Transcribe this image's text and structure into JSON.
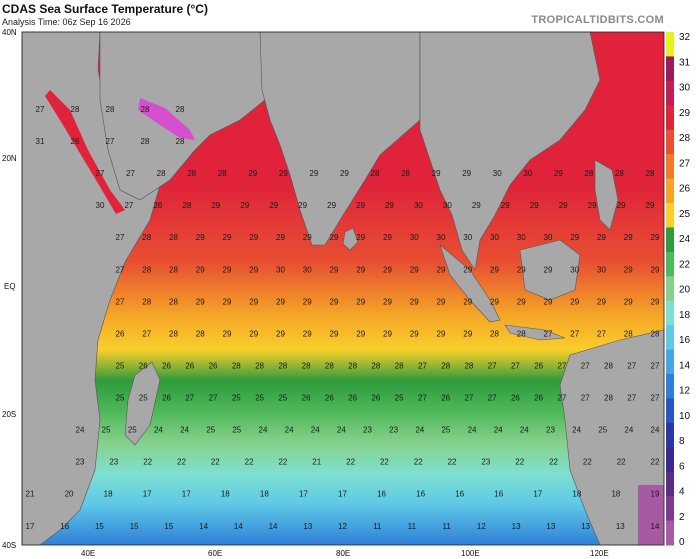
{
  "header": {
    "title": "CDAS Sea Surface Temperature (°C)",
    "subtitle": "Analysis Time: 06z Sep 16 2026",
    "brand": "TROPICALTIDBITS.COM"
  },
  "axes": {
    "lat_ticks": [
      "40N",
      "20N",
      "EQ",
      "20S",
      "40S"
    ],
    "lon_ticks": [
      "40E",
      "60E",
      "80E",
      "100E",
      "120E"
    ]
  },
  "colorbar": {
    "labels": [
      "32",
      "31",
      "30",
      "29",
      "28",
      "27",
      "26",
      "25",
      "24",
      "22",
      "20",
      "18",
      "16",
      "14",
      "12",
      "10",
      "8",
      "6",
      "4",
      "2",
      "0"
    ],
    "colors": [
      "#e6f21e",
      "#9b1b5a",
      "#c21d55",
      "#e0233a",
      "#e85032",
      "#ee7a2a",
      "#f5a427",
      "#f9cf2b",
      "#2e9b3c",
      "#4fb85a",
      "#86d08a",
      "#7fe0d0",
      "#5fc9e6",
      "#46a6e3",
      "#2f7fd8",
      "#2657c4",
      "#2c37a6",
      "#3b2a8e",
      "#5a2c86",
      "#7c3a8e",
      "#a65aa3"
    ]
  },
  "map": {
    "background_color": "#a8a8a8",
    "ocean_base_color": "#e85032"
  },
  "sst_labels": {
    "row_lats": [
      28,
      23,
      18,
      13,
      8,
      3,
      -2,
      -7,
      -12,
      -17,
      -22,
      -27,
      -32,
      -37
    ],
    "rows": [
      {
        "lat": 28,
        "cells": [
          [
            27,
            "red"
          ],
          [
            28,
            "red"
          ],
          [
            28,
            "red"
          ],
          [
            28,
            "red"
          ],
          [
            28,
            "red"
          ]
        ]
      },
      {
        "lat": 23,
        "cells": [
          [
            31,
            "red"
          ],
          [
            26,
            "orange"
          ],
          [
            27,
            "orange"
          ],
          [
            28,
            "red"
          ],
          [
            28,
            "red"
          ]
        ]
      },
      {
        "lat": 18,
        "cells": [
          [
            27,
            "orange"
          ],
          [
            27,
            "orange"
          ],
          [
            28,
            "red"
          ],
          [
            28,
            "red"
          ],
          [
            28,
            "red"
          ],
          [
            29,
            "red"
          ],
          [
            29,
            "red"
          ],
          [
            29,
            "red"
          ],
          [
            29,
            "red"
          ],
          [
            28,
            "red"
          ],
          [
            28,
            "red"
          ],
          [
            29,
            "red"
          ],
          [
            29,
            "red"
          ],
          [
            30,
            "red"
          ],
          [
            30,
            "red"
          ],
          [
            29,
            "red"
          ],
          [
            28,
            "red"
          ],
          [
            28,
            "red"
          ],
          [
            28,
            "red"
          ]
        ]
      },
      {
        "lat": 13,
        "cells": [
          [
            30,
            "red"
          ],
          [
            27,
            "orange"
          ],
          [
            26,
            "orange"
          ],
          [
            28,
            "red"
          ],
          [
            29,
            "red"
          ],
          [
            29,
            "red"
          ],
          [
            29,
            "red"
          ],
          [
            29,
            "red"
          ],
          [
            29,
            "red"
          ],
          [
            29,
            "red"
          ],
          [
            29,
            "red"
          ],
          [
            30,
            "red"
          ],
          [
            30,
            "red"
          ],
          [
            29,
            "red"
          ],
          [
            29,
            "red"
          ],
          [
            29,
            "red"
          ],
          [
            29,
            "red"
          ],
          [
            29,
            "red"
          ],
          [
            29,
            "red"
          ],
          [
            29,
            "red"
          ]
        ]
      },
      {
        "lat": 8,
        "cells": [
          [
            27,
            "orange"
          ],
          [
            28,
            "red"
          ],
          [
            28,
            "red"
          ],
          [
            29,
            "red"
          ],
          [
            29,
            "red"
          ],
          [
            29,
            "red"
          ],
          [
            29,
            "red"
          ],
          [
            29,
            "red"
          ],
          [
            29,
            "red"
          ],
          [
            29,
            "red"
          ],
          [
            29,
            "red"
          ],
          [
            30,
            "red"
          ],
          [
            30,
            "red"
          ],
          [
            30,
            "red"
          ],
          [
            30,
            "red"
          ],
          [
            30,
            "red"
          ],
          [
            30,
            "red"
          ],
          [
            29,
            "red"
          ],
          [
            29,
            "red"
          ],
          [
            29,
            "red"
          ],
          [
            29,
            "red"
          ]
        ]
      },
      {
        "lat": 3,
        "cells": [
          [
            27,
            "orange"
          ],
          [
            28,
            "red"
          ],
          [
            28,
            "red"
          ],
          [
            29,
            "red"
          ],
          [
            29,
            "red"
          ],
          [
            29,
            "red"
          ],
          [
            30,
            "red"
          ],
          [
            30,
            "red"
          ],
          [
            29,
            "red"
          ],
          [
            29,
            "red"
          ],
          [
            29,
            "red"
          ],
          [
            29,
            "red"
          ],
          [
            29,
            "red"
          ],
          [
            29,
            "red"
          ],
          [
            29,
            "red"
          ],
          [
            29,
            "red"
          ],
          [
            29,
            "red"
          ],
          [
            30,
            "red"
          ],
          [
            30,
            "red"
          ],
          [
            29,
            "red"
          ],
          [
            29,
            "red"
          ]
        ]
      },
      {
        "lat": -2,
        "cells": [
          [
            27,
            "orange"
          ],
          [
            28,
            "orange"
          ],
          [
            28,
            "red"
          ],
          [
            29,
            "red"
          ],
          [
            29,
            "red"
          ],
          [
            29,
            "red"
          ],
          [
            29,
            "red"
          ],
          [
            29,
            "red"
          ],
          [
            29,
            "red"
          ],
          [
            29,
            "red"
          ],
          [
            29,
            "red"
          ],
          [
            29,
            "red"
          ],
          [
            29,
            "red"
          ],
          [
            29,
            "red"
          ],
          [
            29,
            "red"
          ],
          [
            29,
            "red"
          ],
          [
            29,
            "red"
          ],
          [
            29,
            "red"
          ],
          [
            29,
            "red"
          ],
          [
            29,
            "red"
          ],
          [
            29,
            "red"
          ]
        ]
      },
      {
        "lat": -7,
        "cells": [
          [
            26,
            "yellow"
          ],
          [
            27,
            "orange"
          ],
          [
            28,
            "orange"
          ],
          [
            28,
            "red"
          ],
          [
            29,
            "red"
          ],
          [
            29,
            "red"
          ],
          [
            29,
            "red"
          ],
          [
            29,
            "red"
          ],
          [
            29,
            "red"
          ],
          [
            29,
            "red"
          ],
          [
            29,
            "red"
          ],
          [
            29,
            "red"
          ],
          [
            29,
            "red"
          ],
          [
            29,
            "red"
          ],
          [
            28,
            "orange"
          ],
          [
            28,
            "orange"
          ],
          [
            27,
            "orange"
          ],
          [
            27,
            "orange"
          ],
          [
            27,
            "orange"
          ],
          [
            28,
            "red"
          ],
          [
            28,
            "red"
          ]
        ]
      },
      {
        "lat": -12,
        "cells": [
          [
            25,
            "yellow"
          ],
          [
            26,
            "yellow"
          ],
          [
            26,
            "yellow"
          ],
          [
            26,
            "yellow"
          ],
          [
            26,
            "yellow"
          ],
          [
            28,
            "orange"
          ],
          [
            28,
            "orange"
          ],
          [
            28,
            "orange"
          ],
          [
            28,
            "orange"
          ],
          [
            28,
            "orange"
          ],
          [
            28,
            "orange"
          ],
          [
            28,
            "orange"
          ],
          [
            28,
            "orange"
          ],
          [
            27,
            "orange"
          ],
          [
            28,
            "orange"
          ],
          [
            28,
            "orange"
          ],
          [
            27,
            "orange"
          ],
          [
            27,
            "orange"
          ],
          [
            26,
            "yellow"
          ],
          [
            27,
            "orange"
          ],
          [
            27,
            "orange"
          ],
          [
            28,
            "red"
          ],
          [
            27,
            "orange"
          ],
          [
            27,
            "orange"
          ]
        ]
      },
      {
        "lat": -17,
        "cells": [
          [
            25,
            "yellow"
          ],
          [
            25,
            "yellow"
          ],
          [
            26,
            "yellow"
          ],
          [
            27,
            "orange"
          ],
          [
            27,
            "orange"
          ],
          [
            25,
            "yellow"
          ],
          [
            25,
            "yellow"
          ],
          [
            25,
            "yellow"
          ],
          [
            26,
            "yellow"
          ],
          [
            26,
            "yellow"
          ],
          [
            26,
            "yellow"
          ],
          [
            26,
            "yellow"
          ],
          [
            25,
            "yellow"
          ],
          [
            27,
            "orange"
          ],
          [
            26,
            "yellow"
          ],
          [
            27,
            "orange"
          ],
          [
            27,
            "orange"
          ],
          [
            26,
            "yellow"
          ],
          [
            26,
            "yellow"
          ],
          [
            27,
            "orange"
          ],
          [
            27,
            "orange"
          ],
          [
            28,
            "red"
          ],
          [
            27,
            "orange"
          ],
          [
            27,
            "orange"
          ]
        ]
      },
      {
        "lat": -22,
        "cells": [
          [
            24,
            "green"
          ],
          [
            25,
            "yellow"
          ],
          [
            25,
            "yellow"
          ],
          [
            24,
            "green"
          ],
          [
            24,
            "green"
          ],
          [
            25,
            "yellow"
          ],
          [
            25,
            "yellow"
          ],
          [
            24,
            "green"
          ],
          [
            24,
            "green"
          ],
          [
            24,
            "green"
          ],
          [
            24,
            "green"
          ],
          [
            23,
            "green"
          ],
          [
            23,
            "green"
          ],
          [
            24,
            "green"
          ],
          [
            25,
            "yellow"
          ],
          [
            24,
            "green"
          ],
          [
            24,
            "green"
          ],
          [
            24,
            "green"
          ],
          [
            23,
            "green"
          ],
          [
            24,
            "green"
          ],
          [
            25,
            "yellow"
          ],
          [
            24,
            "green"
          ],
          [
            24,
            "green"
          ]
        ]
      },
      {
        "lat": -27,
        "cells": [
          [
            23,
            "ltgreen"
          ],
          [
            23,
            "ltgreen"
          ],
          [
            22,
            "ltgreen"
          ],
          [
            22,
            "ltgreen"
          ],
          [
            22,
            "ltgreen"
          ],
          [
            22,
            "ltgreen"
          ],
          [
            22,
            "ltgreen"
          ],
          [
            21,
            "ltgreen"
          ],
          [
            22,
            "ltgreen"
          ],
          [
            22,
            "ltgreen"
          ],
          [
            22,
            "ltgreen"
          ],
          [
            22,
            "ltgreen"
          ],
          [
            23,
            "ltgreen"
          ],
          [
            22,
            "ltgreen"
          ],
          [
            22,
            "ltgreen"
          ],
          [
            22,
            "ltgreen"
          ],
          [
            22,
            "ltgreen"
          ],
          [
            22,
            "ltgreen"
          ]
        ]
      },
      {
        "lat": -32,
        "cells": [
          [
            21,
            "aqua"
          ],
          [
            20,
            "aqua"
          ],
          [
            18,
            "aqua"
          ],
          [
            17,
            "aqua"
          ],
          [
            17,
            "aqua"
          ],
          [
            18,
            "aqua"
          ],
          [
            18,
            "aqua"
          ],
          [
            17,
            "aqua"
          ],
          [
            17,
            "aqua"
          ],
          [
            16,
            "aqua"
          ],
          [
            16,
            "aqua"
          ],
          [
            16,
            "aqua"
          ],
          [
            16,
            "aqua"
          ],
          [
            17,
            "aqua"
          ],
          [
            18,
            "aqua"
          ],
          [
            18,
            "aqua"
          ],
          [
            19,
            "aqua"
          ]
        ]
      },
      {
        "lat": -37,
        "cells": [
          [
            17,
            "blue"
          ],
          [
            16,
            "blue"
          ],
          [
            15,
            "blue"
          ],
          [
            15,
            "blue"
          ],
          [
            15,
            "blue"
          ],
          [
            14,
            "blue"
          ],
          [
            14,
            "blue"
          ],
          [
            14,
            "blue"
          ],
          [
            13,
            "blue"
          ],
          [
            12,
            "blue"
          ],
          [
            11,
            "blue"
          ],
          [
            11,
            "blue"
          ],
          [
            11,
            "blue"
          ],
          [
            12,
            "blue"
          ],
          [
            13,
            "blue"
          ],
          [
            13,
            "blue"
          ],
          [
            13,
            "blue"
          ],
          [
            13,
            "blue"
          ],
          [
            14,
            "blue"
          ]
        ]
      }
    ]
  }
}
